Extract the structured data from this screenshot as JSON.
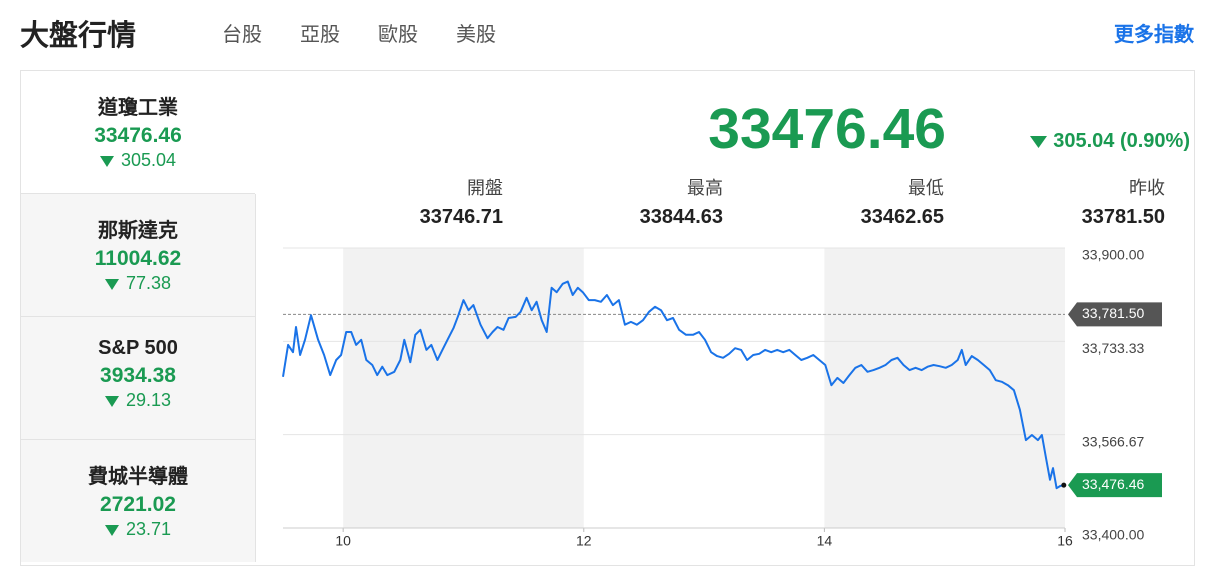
{
  "header": {
    "title": "大盤行情",
    "tabs": [
      "台股",
      "亞股",
      "歐股",
      "美股"
    ],
    "active_tab": 3,
    "more_link": "更多指數"
  },
  "indices": [
    {
      "name": "道瓊工業",
      "value": "33476.46",
      "change": "305.04"
    },
    {
      "name": "那斯達克",
      "value": "11004.62",
      "change": "77.38"
    },
    {
      "name": "S&P 500",
      "value": "3934.38",
      "change": "29.13"
    },
    {
      "name": "費城半導體",
      "value": "2721.02",
      "change": "23.71"
    }
  ],
  "summary": {
    "value": "33476.46",
    "change_text": "305.04 (0.90%)",
    "stats": [
      {
        "label": "開盤",
        "value": "33746.71"
      },
      {
        "label": "最高",
        "value": "33844.63"
      },
      {
        "label": "最低",
        "value": "33462.65"
      },
      {
        "label": "昨收",
        "value": "33781.50"
      }
    ]
  },
  "chart_data": {
    "type": "line",
    "color": "#1a73e8",
    "x": [
      9.5,
      9.542,
      9.583,
      9.608,
      9.642,
      9.683,
      9.733,
      9.792,
      9.842,
      9.892,
      9.942,
      9.983,
      10.025,
      10.067,
      10.108,
      10.15,
      10.192,
      10.242,
      10.283,
      10.325,
      10.367,
      10.425,
      10.475,
      10.508,
      10.558,
      10.6,
      10.642,
      10.692,
      10.733,
      10.783,
      10.825,
      10.867,
      10.917,
      10.958,
      11.0,
      11.042,
      11.083,
      11.142,
      11.2,
      11.242,
      11.283,
      11.333,
      11.375,
      11.433,
      11.475,
      11.525,
      11.567,
      11.608,
      11.65,
      11.692,
      11.733,
      11.775,
      11.825,
      11.867,
      11.908,
      11.95,
      11.992,
      12.042,
      12.092,
      12.142,
      12.192,
      12.242,
      12.292,
      12.342,
      12.392,
      12.442,
      12.492,
      12.542,
      12.592,
      12.642,
      12.692,
      12.742,
      12.792,
      12.85,
      12.908,
      12.958,
      13.008,
      13.058,
      13.108,
      13.158,
      13.208,
      13.258,
      13.308,
      13.358,
      13.408,
      13.458,
      13.508,
      13.558,
      13.608,
      13.658,
      13.708,
      13.758,
      13.808,
      13.858,
      13.908,
      13.958,
      14.008,
      14.058,
      14.108,
      14.158,
      14.208,
      14.258,
      14.308,
      14.358,
      14.408,
      14.458,
      14.508,
      14.558,
      14.608,
      14.658,
      14.708,
      14.758,
      14.808,
      14.858,
      14.908,
      14.958,
      15.008,
      15.058,
      15.108,
      15.142,
      15.175,
      15.225,
      15.275,
      15.325,
      15.375,
      15.425,
      15.475,
      15.525,
      15.575,
      15.625,
      15.675,
      15.725,
      15.775,
      15.808,
      15.842,
      15.875,
      15.9,
      15.93,
      15.96,
      15.99
    ],
    "values": [
      33670,
      33727,
      33714,
      33759,
      33709,
      33736,
      33780,
      33736,
      33709,
      33673,
      33700,
      33709,
      33750,
      33750,
      33727,
      33736,
      33700,
      33691,
      33673,
      33688,
      33673,
      33679,
      33700,
      33736,
      33696,
      33745,
      33754,
      33718,
      33727,
      33700,
      33718,
      33736,
      33757,
      33780,
      33807,
      33789,
      33798,
      33763,
      33739,
      33750,
      33759,
      33754,
      33775,
      33777,
      33786,
      33811,
      33789,
      33804,
      33771,
      33750,
      33829,
      33821,
      33836,
      33840,
      33816,
      33829,
      33821,
      33807,
      33807,
      33804,
      33816,
      33798,
      33807,
      33763,
      33768,
      33763,
      33771,
      33786,
      33795,
      33789,
      33771,
      33775,
      33754,
      33745,
      33745,
      33750,
      33736,
      33714,
      33707,
      33704,
      33711,
      33721,
      33718,
      33700,
      33709,
      33711,
      33718,
      33714,
      33718,
      33714,
      33718,
      33709,
      33700,
      33704,
      33709,
      33700,
      33691,
      33655,
      33668,
      33659,
      33673,
      33686,
      33691,
      33679,
      33682,
      33686,
      33691,
      33700,
      33704,
      33691,
      33682,
      33686,
      33682,
      33688,
      33691,
      33689,
      33686,
      33691,
      33700,
      33718,
      33691,
      33707,
      33700,
      33691,
      33682,
      33664,
      33661,
      33655,
      33646,
      33611,
      33557,
      33566,
      33557,
      33566,
      33525,
      33486,
      33507,
      33471,
      33475,
      33476.46
    ],
    "xlim": [
      9.5,
      16
    ],
    "xticks": [
      10,
      12,
      14,
      16
    ],
    "ylim": [
      33400,
      33900
    ],
    "yticks": [
      {
        "value": 33400,
        "label": "33,400.00"
      },
      {
        "value": 33566.67,
        "label": "33,566.67"
      },
      {
        "value": 33733.33,
        "label": "33,733.33"
      },
      {
        "value": 33900,
        "label": "33,900.00"
      }
    ],
    "grid": true,
    "reference": {
      "value": 33781.5,
      "label": "33,781.50"
    },
    "last_label": {
      "value": 33476.46,
      "label": "33,476.46"
    }
  }
}
